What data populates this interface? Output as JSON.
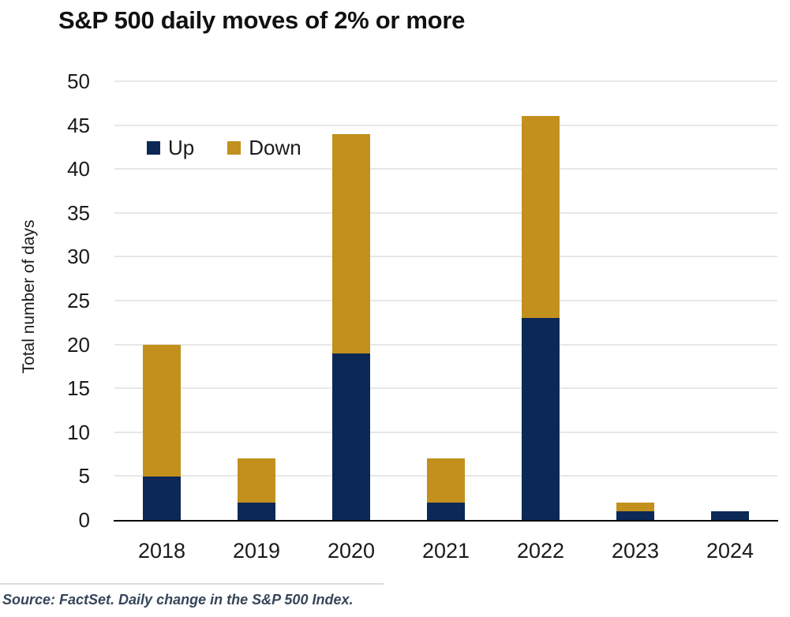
{
  "page": {
    "source_note": "Source: FactSet. Daily change in the S&P 500 Index."
  },
  "chart_data": {
    "type": "bar",
    "stacked": true,
    "title": "S&P 500 daily moves of 2% or more",
    "categories": [
      "2018",
      "2019",
      "2020",
      "2021",
      "2022",
      "2023",
      "2024"
    ],
    "series": [
      {
        "name": "Up",
        "color": "#0B2857",
        "values": [
          5,
          2,
          19,
          2,
          23,
          1,
          1
        ]
      },
      {
        "name": "Down",
        "color": "#C2901C",
        "values": [
          15,
          5,
          25,
          5,
          23,
          1,
          0
        ]
      }
    ],
    "totals": [
      20,
      7,
      44,
      7,
      46,
      2,
      1
    ],
    "xlabel": "",
    "ylabel": "Total number of days",
    "ylim": [
      0,
      50
    ],
    "ytick_step": 5,
    "grid": true,
    "legend_position": "top-left-inside"
  },
  "colors": {
    "up": "#0B2857",
    "down": "#C2901C",
    "title_text": "#111111",
    "tick_text": "#1A1A1A",
    "gridline": "#E7E7E7",
    "axis_line": "#000000",
    "divider": "#DCDCDC",
    "source_text": "#36465A",
    "background": "#FFFFFF"
  }
}
